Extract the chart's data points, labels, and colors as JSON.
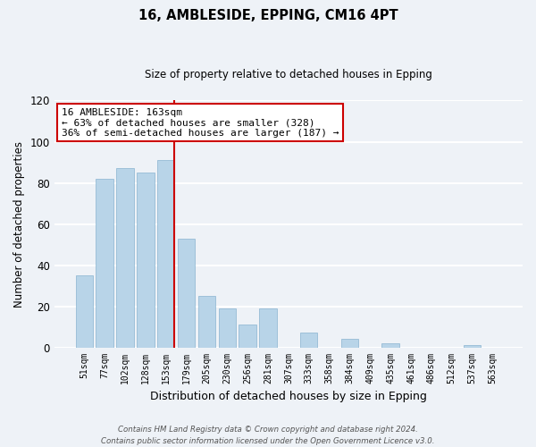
{
  "title": "16, AMBLESIDE, EPPING, CM16 4PT",
  "subtitle": "Size of property relative to detached houses in Epping",
  "xlabel": "Distribution of detached houses by size in Epping",
  "ylabel": "Number of detached properties",
  "bar_labels": [
    "51sqm",
    "77sqm",
    "102sqm",
    "128sqm",
    "153sqm",
    "179sqm",
    "205sqm",
    "230sqm",
    "256sqm",
    "281sqm",
    "307sqm",
    "333sqm",
    "358sqm",
    "384sqm",
    "409sqm",
    "435sqm",
    "461sqm",
    "486sqm",
    "512sqm",
    "537sqm",
    "563sqm"
  ],
  "bar_values": [
    35,
    82,
    87,
    85,
    91,
    53,
    25,
    19,
    11,
    19,
    0,
    7,
    0,
    4,
    0,
    2,
    0,
    0,
    0,
    1,
    0
  ],
  "bar_color": "#b8d4e8",
  "bar_edge_color": "#8ab4d0",
  "vline_index": 4,
  "vline_color": "#cc0000",
  "annotation_lines": [
    "16 AMBLESIDE: 163sqm",
    "← 63% of detached houses are smaller (328)",
    "36% of semi-detached houses are larger (187) →"
  ],
  "annotation_box_color": "#ffffff",
  "annotation_box_edgecolor": "#cc0000",
  "ylim": [
    0,
    120
  ],
  "yticks": [
    0,
    20,
    40,
    60,
    80,
    100,
    120
  ],
  "footer_line1": "Contains HM Land Registry data © Crown copyright and database right 2024.",
  "footer_line2": "Contains public sector information licensed under the Open Government Licence v3.0.",
  "background_color": "#eef2f7",
  "grid_color": "#ffffff"
}
